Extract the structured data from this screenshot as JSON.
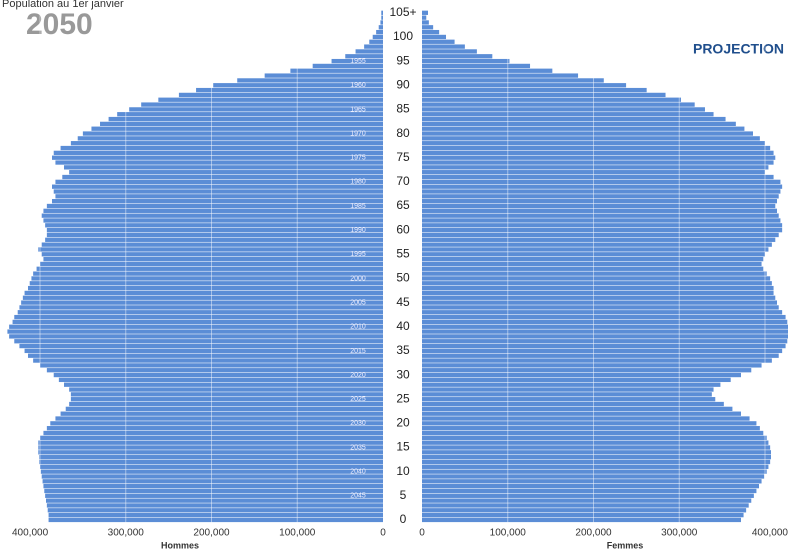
{
  "chart_data": {
    "type": "pyramid",
    "subtitle": "Population au 1er janvier",
    "title": "2050",
    "annotation": "PROJECTION",
    "categories": [
      "0",
      null,
      null,
      null,
      null,
      "5",
      null,
      null,
      null,
      null,
      "10",
      null,
      null,
      null,
      null,
      "15",
      null,
      null,
      null,
      null,
      "20",
      null,
      null,
      null,
      null,
      "25",
      null,
      null,
      null,
      null,
      "30",
      null,
      null,
      null,
      null,
      "35",
      null,
      null,
      null,
      null,
      "40",
      null,
      null,
      null,
      null,
      "45",
      null,
      null,
      null,
      null,
      "50",
      null,
      null,
      null,
      null,
      "55",
      null,
      null,
      null,
      null,
      "60",
      null,
      null,
      null,
      null,
      "65",
      null,
      null,
      null,
      null,
      "70",
      null,
      null,
      null,
      null,
      "75",
      null,
      null,
      null,
      null,
      "80",
      null,
      null,
      null,
      null,
      "85",
      null,
      null,
      null,
      null,
      "90",
      null,
      null,
      null,
      null,
      "95",
      null,
      null,
      null,
      null,
      "100",
      null,
      null,
      null,
      null,
      "105+"
    ],
    "birth_years": [
      null,
      null,
      null,
      null,
      null,
      "2045",
      null,
      null,
      null,
      null,
      "2040",
      null,
      null,
      null,
      null,
      "2035",
      null,
      null,
      null,
      null,
      "2030",
      null,
      null,
      null,
      null,
      "2025",
      null,
      null,
      null,
      null,
      "2020",
      null,
      null,
      null,
      null,
      "2015",
      null,
      null,
      null,
      null,
      "2010",
      null,
      null,
      null,
      null,
      "2005",
      null,
      null,
      null,
      null,
      "2000",
      null,
      null,
      null,
      null,
      "1995",
      null,
      null,
      null,
      null,
      "1990",
      null,
      null,
      null,
      null,
      "1985",
      null,
      null,
      null,
      null,
      "1980",
      null,
      null,
      null,
      null,
      "1975",
      null,
      null,
      null,
      null,
      "1970",
      null,
      null,
      null,
      null,
      "1965",
      null,
      null,
      null,
      null,
      "1960",
      null,
      null,
      null,
      null,
      "1955",
      null,
      null,
      null,
      null,
      null,
      null,
      null,
      null,
      null,
      null
    ],
    "series": [
      {
        "name": "Hommes",
        "color": "#5b8dd6",
        "values": [
          390000,
          390000,
          391000,
          392000,
          393000,
          394000,
          395000,
          396000,
          397000,
          398000,
          399000,
          400000,
          401000,
          401000,
          402000,
          402000,
          402000,
          400000,
          396000,
          392000,
          388000,
          382000,
          376000,
          370000,
          366000,
          364000,
          364000,
          366000,
          372000,
          378000,
          384000,
          392000,
          400000,
          408000,
          414000,
          418000,
          424000,
          430000,
          436000,
          438000,
          436000,
          432000,
          430000,
          426000,
          424000,
          422000,
          420000,
          418000,
          414000,
          412000,
          410000,
          408000,
          404000,
          400000,
          396000,
          398000,
          402000,
          398000,
          394000,
          392000,
          392000,
          394000,
          396000,
          398000,
          396000,
          392000,
          386000,
          382000,
          384000,
          386000,
          382000,
          374000,
          366000,
          372000,
          382000,
          386000,
          384000,
          376000,
          364000,
          356000,
          350000,
          340000,
          330000,
          320000,
          310000,
          296000,
          282000,
          262000,
          238000,
          218000,
          198000,
          170000,
          138000,
          108000,
          82000,
          60000,
          44000,
          32000,
          22000,
          16000,
          12000,
          8000,
          5000,
          3000,
          2000,
          2000
        ]
      },
      {
        "name": "Femmes",
        "color": "#5b8dd6",
        "values": [
          372000,
          375000,
          378000,
          381000,
          384000,
          387000,
          390000,
          393000,
          396000,
          399000,
          402000,
          404000,
          406000,
          407000,
          407000,
          406000,
          404000,
          402000,
          398000,
          394000,
          390000,
          382000,
          372000,
          362000,
          352000,
          342000,
          338000,
          340000,
          348000,
          360000,
          372000,
          384000,
          396000,
          408000,
          416000,
          420000,
          424000,
          426000,
          428000,
          428000,
          428000,
          426000,
          424000,
          420000,
          416000,
          414000,
          412000,
          410000,
          410000,
          408000,
          406000,
          402000,
          398000,
          396000,
          398000,
          400000,
          404000,
          408000,
          412000,
          416000,
          420000,
          420000,
          418000,
          416000,
          414000,
          412000,
          414000,
          416000,
          418000,
          420000,
          418000,
          410000,
          400000,
          404000,
          410000,
          412000,
          410000,
          406000,
          400000,
          394000,
          386000,
          376000,
          366000,
          354000,
          340000,
          330000,
          318000,
          302000,
          284000,
          262000,
          238000,
          212000,
          182000,
          152000,
          126000,
          102000,
          82000,
          64000,
          50000,
          38000,
          28000,
          20000,
          13000,
          8000,
          5000,
          7000
        ]
      }
    ],
    "xlim": [
      0,
      400000
    ],
    "xticks": [
      0,
      {
        "value": 100000,
        "label": "100,000"
      },
      {
        "value": 200000,
        "label": "200,000"
      },
      {
        "value": 300000,
        "label": "300,000"
      },
      {
        "value": 400000,
        "label": "400,000"
      }
    ],
    "grid": true
  }
}
